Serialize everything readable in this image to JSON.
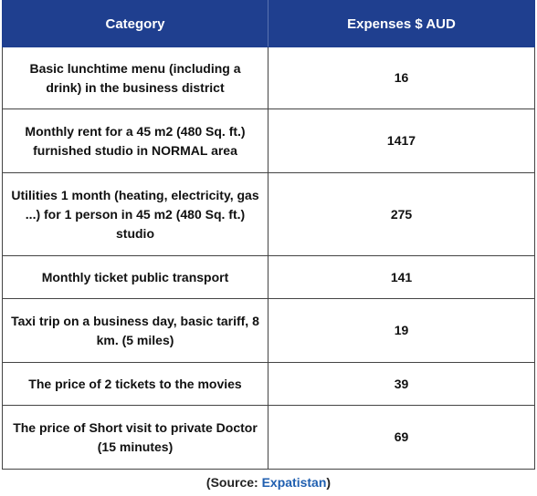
{
  "table": {
    "headers": [
      "Category",
      "Expenses $ AUD"
    ],
    "rows": [
      {
        "category": "Basic lunchtime menu (including a drink) in the business district",
        "expense": "16"
      },
      {
        "category": "Monthly rent for a 45 m2 (480 Sq. ft.) furnished studio in NORMAL area",
        "expense": "1417"
      },
      {
        "category": "Utilities 1 month (heating, electricity, gas ...) for 1 person in 45 m2 (480 Sq. ft.) studio",
        "expense": "275"
      },
      {
        "category": "Monthly ticket public transport",
        "expense": "141"
      },
      {
        "category": "Taxi trip on a business day, basic tariff, 8 km. (5 miles)",
        "expense": "19"
      },
      {
        "category": "The price of 2 tickets to the movies",
        "expense": "39"
      },
      {
        "category": "The price of Short visit to private Doctor (15 minutes)",
        "expense": "69"
      }
    ]
  },
  "source": {
    "prefix": "(Source: ",
    "link": "Expatistan",
    "suffix": ")"
  },
  "colors": {
    "header_bg": "#1f3f8f",
    "header_text": "#ffffff",
    "link": "#1f5fb0"
  }
}
